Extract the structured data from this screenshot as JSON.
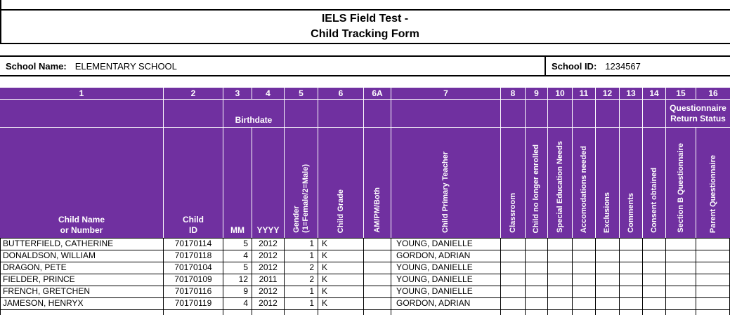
{
  "title": {
    "line1": "IELS Field Test -",
    "line2": "Child Tracking Form"
  },
  "school": {
    "name_label": "School Name:",
    "name_value": "ELEMENTARY SCHOOL",
    "id_label": "School ID:",
    "id_value": "1234567"
  },
  "colors": {
    "header_bg": "#7030A0",
    "header_text": "#FFFFFF",
    "grid_line": "#000000"
  },
  "table": {
    "column_numbers": [
      "1",
      "2",
      "3",
      "4",
      "5",
      "6",
      "6A",
      "7",
      "8",
      "9",
      "10",
      "11",
      "12",
      "13",
      "14",
      "15",
      "16"
    ],
    "group_headers": {
      "birthdate": "Birthdate",
      "questionnaire_return_status": "Questionnaire\nReturn Status"
    },
    "column_labels": [
      {
        "id": "1",
        "label": "Child Name\nor Number",
        "orientation": "horizontal"
      },
      {
        "id": "2",
        "label": "Child\nID",
        "orientation": "horizontal"
      },
      {
        "id": "3",
        "label": "MM",
        "orientation": "horizontal"
      },
      {
        "id": "4",
        "label": "YYYY",
        "orientation": "horizontal"
      },
      {
        "id": "5",
        "label": "Gender\n(1=Female/2=Male)",
        "orientation": "vertical"
      },
      {
        "id": "6",
        "label": "Child Grade",
        "orientation": "vertical"
      },
      {
        "id": "6A",
        "label": "AM/PM/Both",
        "orientation": "vertical"
      },
      {
        "id": "7",
        "label": "Child Primary Teacher",
        "orientation": "vertical"
      },
      {
        "id": "8",
        "label": "Classroom",
        "orientation": "vertical"
      },
      {
        "id": "9",
        "label": "Child no longer enrolled",
        "orientation": "vertical"
      },
      {
        "id": "10",
        "label": "Special Education Needs",
        "orientation": "vertical"
      },
      {
        "id": "11",
        "label": "Accomodations needed",
        "orientation": "vertical"
      },
      {
        "id": "12",
        "label": "Exclusions",
        "orientation": "vertical"
      },
      {
        "id": "13",
        "label": "Comments",
        "orientation": "vertical"
      },
      {
        "id": "14",
        "label": "Consent obtained",
        "orientation": "vertical"
      },
      {
        "id": "15",
        "label": "Section B Questionnaire",
        "orientation": "vertical"
      },
      {
        "id": "16",
        "label": "Parent Questionnaire",
        "orientation": "vertical"
      }
    ],
    "rows": [
      {
        "cells": [
          "BUTTERFIELD, CATHERINE",
          "70170114",
          "5",
          "2012",
          "1",
          "K",
          "",
          "YOUNG, DANIELLE",
          "",
          "",
          "",
          "",
          "",
          "",
          "",
          "",
          ""
        ]
      },
      {
        "cells": [
          "DONALDSON, WILLIAM",
          "70170118",
          "4",
          "2012",
          "1",
          "K",
          "",
          "GORDON, ADRIAN",
          "",
          "",
          "",
          "",
          "",
          "",
          "",
          "",
          ""
        ]
      },
      {
        "cells": [
          "DRAGON, PETE",
          "70170104",
          "5",
          "2012",
          "2",
          "K",
          "",
          "YOUNG, DANIELLE",
          "",
          "",
          "",
          "",
          "",
          "",
          "",
          "",
          ""
        ]
      },
      {
        "cells": [
          "FIELDER, PRINCE",
          "70170109",
          "12",
          "2011",
          "2",
          "K",
          "",
          "YOUNG, DANIELLE",
          "",
          "",
          "",
          "",
          "",
          "",
          "",
          "",
          ""
        ]
      },
      {
        "cells": [
          "FRENCH, GRETCHEN",
          "70170116",
          "9",
          "2012",
          "1",
          "K",
          "",
          "YOUNG, DANIELLE",
          "",
          "",
          "",
          "",
          "",
          "",
          "",
          "",
          ""
        ]
      },
      {
        "cells": [
          "JAMESON, HENRYX",
          "70170119",
          "4",
          "2012",
          "1",
          "K",
          "",
          "GORDON, ADRIAN",
          "",
          "",
          "",
          "",
          "",
          "",
          "",
          "",
          ""
        ]
      }
    ]
  }
}
